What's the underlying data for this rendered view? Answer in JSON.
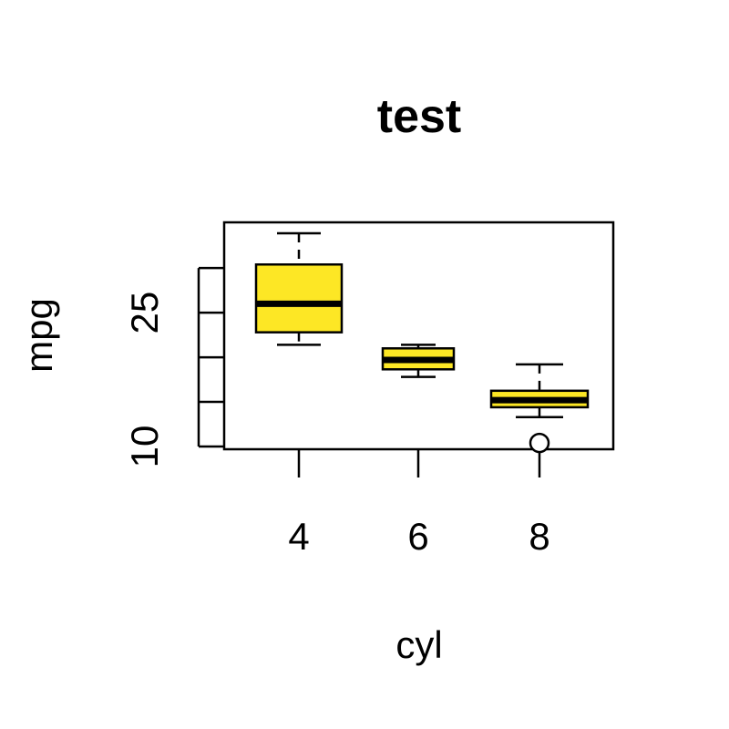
{
  "chart_data": {
    "type": "boxplot",
    "title": "test",
    "xlabel": "cyl",
    "ylabel": "mpg",
    "categories": [
      "4",
      "6",
      "8"
    ],
    "y_ticks": [
      10,
      15,
      20,
      25,
      30
    ],
    "y_tick_labels": [
      "10",
      "",
      "",
      "25",
      ""
    ],
    "ylim": [
      9.5,
      34.5
    ],
    "grid": false,
    "box_color": "#FDE725",
    "series": [
      {
        "category": "4",
        "whisker_low": 21.4,
        "q1": 22.8,
        "median": 26.0,
        "q3": 30.4,
        "whisker_high": 33.9,
        "outliers": []
      },
      {
        "category": "6",
        "whisker_low": 17.8,
        "q1": 18.65,
        "median": 19.7,
        "q3": 21.0,
        "whisker_high": 21.4,
        "outliers": []
      },
      {
        "category": "8",
        "whisker_low": 13.3,
        "q1": 14.4,
        "median": 15.2,
        "q3": 16.25,
        "whisker_high": 19.2,
        "outliers": [
          10.4
        ]
      }
    ]
  }
}
